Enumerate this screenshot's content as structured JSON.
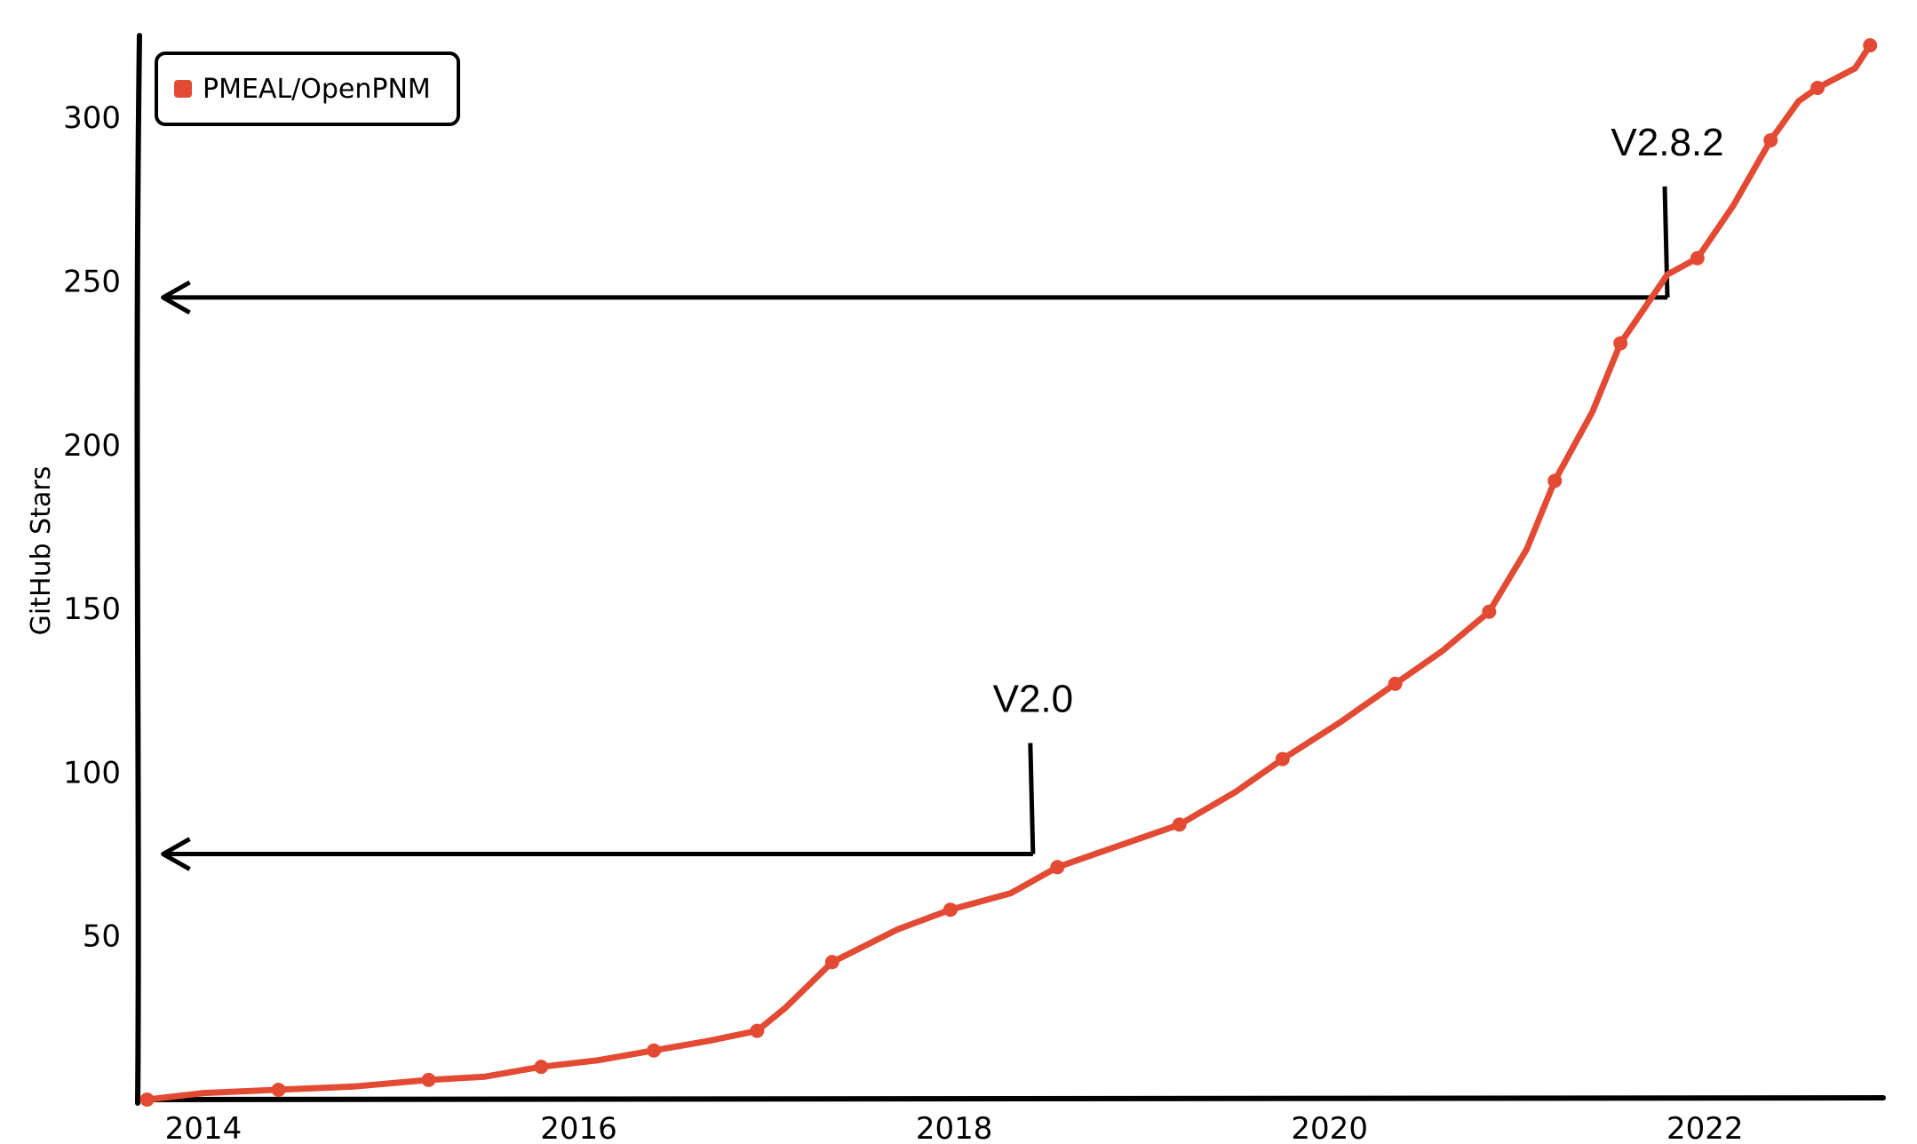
{
  "chart_data": {
    "type": "line",
    "xlabel": "",
    "ylabel": "GitHub Stars",
    "xlim": [
      2013.65,
      2022.95
    ],
    "ylim": [
      0,
      325
    ],
    "x_ticks": [
      2014,
      2016,
      2018,
      2020,
      2022
    ],
    "y_ticks": [
      50,
      100,
      150,
      200,
      250,
      300
    ],
    "grid": false,
    "legend": {
      "placement": "top-left",
      "entries": [
        "PMEAL/OpenPNM"
      ]
    },
    "colors": {
      "series": "#e34a33",
      "axis": "#000000",
      "annotation": "#000000"
    },
    "series": [
      {
        "name": "PMEAL/OpenPNM",
        "x": [
          2013.7,
          2014.0,
          2014.4,
          2014.8,
          2015.2,
          2015.5,
          2015.8,
          2016.1,
          2016.4,
          2016.7,
          2016.95,
          2017.1,
          2017.35,
          2017.7,
          2017.98,
          2018.3,
          2018.55,
          2018.85,
          2019.2,
          2019.5,
          2019.75,
          2020.05,
          2020.35,
          2020.6,
          2020.85,
          2021.05,
          2021.2,
          2021.4,
          2021.55,
          2021.8,
          2021.96,
          2022.15,
          2022.35,
          2022.5,
          2022.6,
          2022.8,
          2022.88
        ],
        "values": [
          0,
          2,
          3,
          4,
          6,
          7,
          10,
          12,
          15,
          18,
          21,
          28,
          42,
          52,
          58,
          63,
          71,
          77,
          84,
          94,
          104,
          115,
          127,
          137,
          149,
          168,
          189,
          210,
          231,
          252,
          257,
          273,
          293,
          305,
          309,
          315,
          322
        ],
        "markers": true
      }
    ],
    "annotations": [
      {
        "text": "V2.0",
        "x": 2018.42,
        "y": 75,
        "arrow_to_x": 2013.7
      },
      {
        "text": "V2.8.2",
        "x": 2021.8,
        "y": 245,
        "arrow_to_x": 2013.7
      }
    ]
  }
}
